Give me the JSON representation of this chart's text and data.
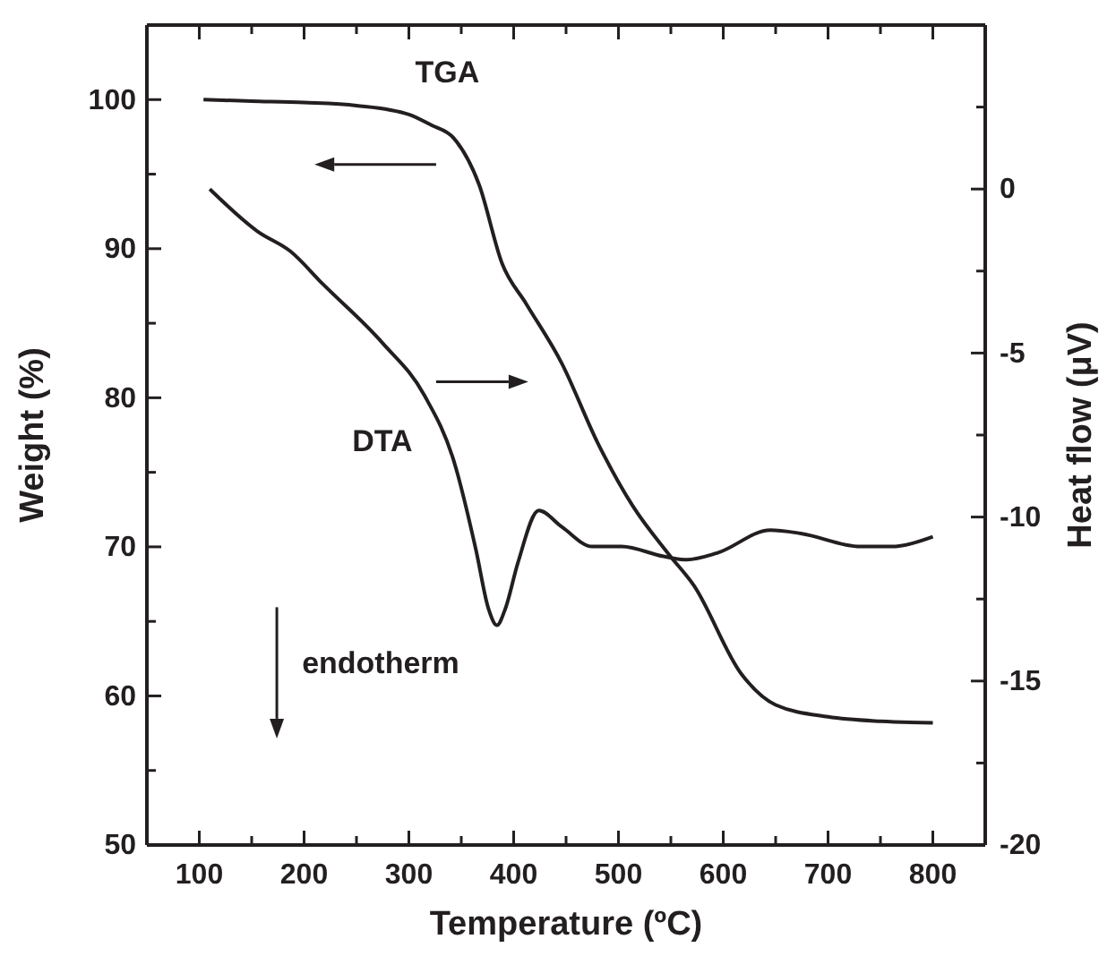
{
  "chart_data": {
    "type": "line",
    "xlabel": "Temperature (ºC)",
    "ylabel": "Weight (%)",
    "y2label": "Heat flow (μV)",
    "xlim": [
      50,
      850
    ],
    "xticks": [
      100,
      {
        "value": 150,
        "label": null
      },
      200,
      {
        "value": 250,
        "label": null
      },
      300,
      {
        "value": 350,
        "label": null
      },
      400,
      {
        "value": 450,
        "label": null
      },
      500,
      {
        "value": 550,
        "label": null
      },
      600,
      {
        "value": 650,
        "label": null
      },
      700,
      {
        "value": 750,
        "label": null
      },
      800
    ],
    "ylim": [
      50,
      105
    ],
    "yticks": [
      50,
      {
        "value": 55,
        "label": null
      },
      60,
      {
        "value": 65,
        "label": null
      },
      70,
      {
        "value": 75,
        "label": null
      },
      80,
      {
        "value": 85,
        "label": null
      },
      90,
      {
        "value": 95,
        "label": null
      },
      100
    ],
    "y2lim": [
      -20,
      5
    ],
    "y2ticks": [
      -20,
      {
        "value": -17.5,
        "label": null
      },
      -15,
      {
        "value": -12.5,
        "label": null
      },
      -10,
      {
        "value": -7.5,
        "label": null
      },
      -5,
      {
        "value": -2.5,
        "label": null
      },
      0,
      {
        "value": 2.5,
        "label": null
      }
    ],
    "grid": false,
    "legend": false,
    "marker": "none",
    "line_style": "solid",
    "series": [
      {
        "color": "#231f20",
        "x": [
          104,
          150,
          200,
          250,
          300,
          321,
          343,
          367,
          389,
          412,
          446,
          480,
          514,
          548,
          572,
          617,
          650,
          700,
          750,
          800
        ],
        "values": [
          100,
          99.9,
          99.8,
          99.6,
          99.0,
          98.3,
          97.4,
          94.3,
          89.0,
          86.3,
          82.3,
          77.0,
          72.7,
          69.5,
          67.4,
          61.5,
          59.4,
          58.6,
          58.3,
          58.2
        ]
      },
      {
        "color": "#231f20",
        "axis": "y2",
        "x": [
          110,
          156,
          187,
          218,
          275,
          315,
          343,
          364,
          376,
          384,
          392,
          404,
          424,
          446,
          475,
          503,
          543,
          565,
          594,
          645,
          674,
          731,
          760,
          800
        ],
        "values": [
          0,
          -1.3,
          -1.9,
          -2.9,
          -4.7,
          -6.3,
          -8.3,
          -11.0,
          -12.8,
          -13.3,
          -12.8,
          -11.4,
          -9.8,
          -10.3,
          -10.9,
          -10.9,
          -11.2,
          -11.3,
          -11.1,
          -10.4,
          -10.5,
          -10.9,
          -10.9,
          -10.6
        ]
      }
    ],
    "annotations": [
      "TGA",
      "DTA",
      "endotherm"
    ]
  }
}
